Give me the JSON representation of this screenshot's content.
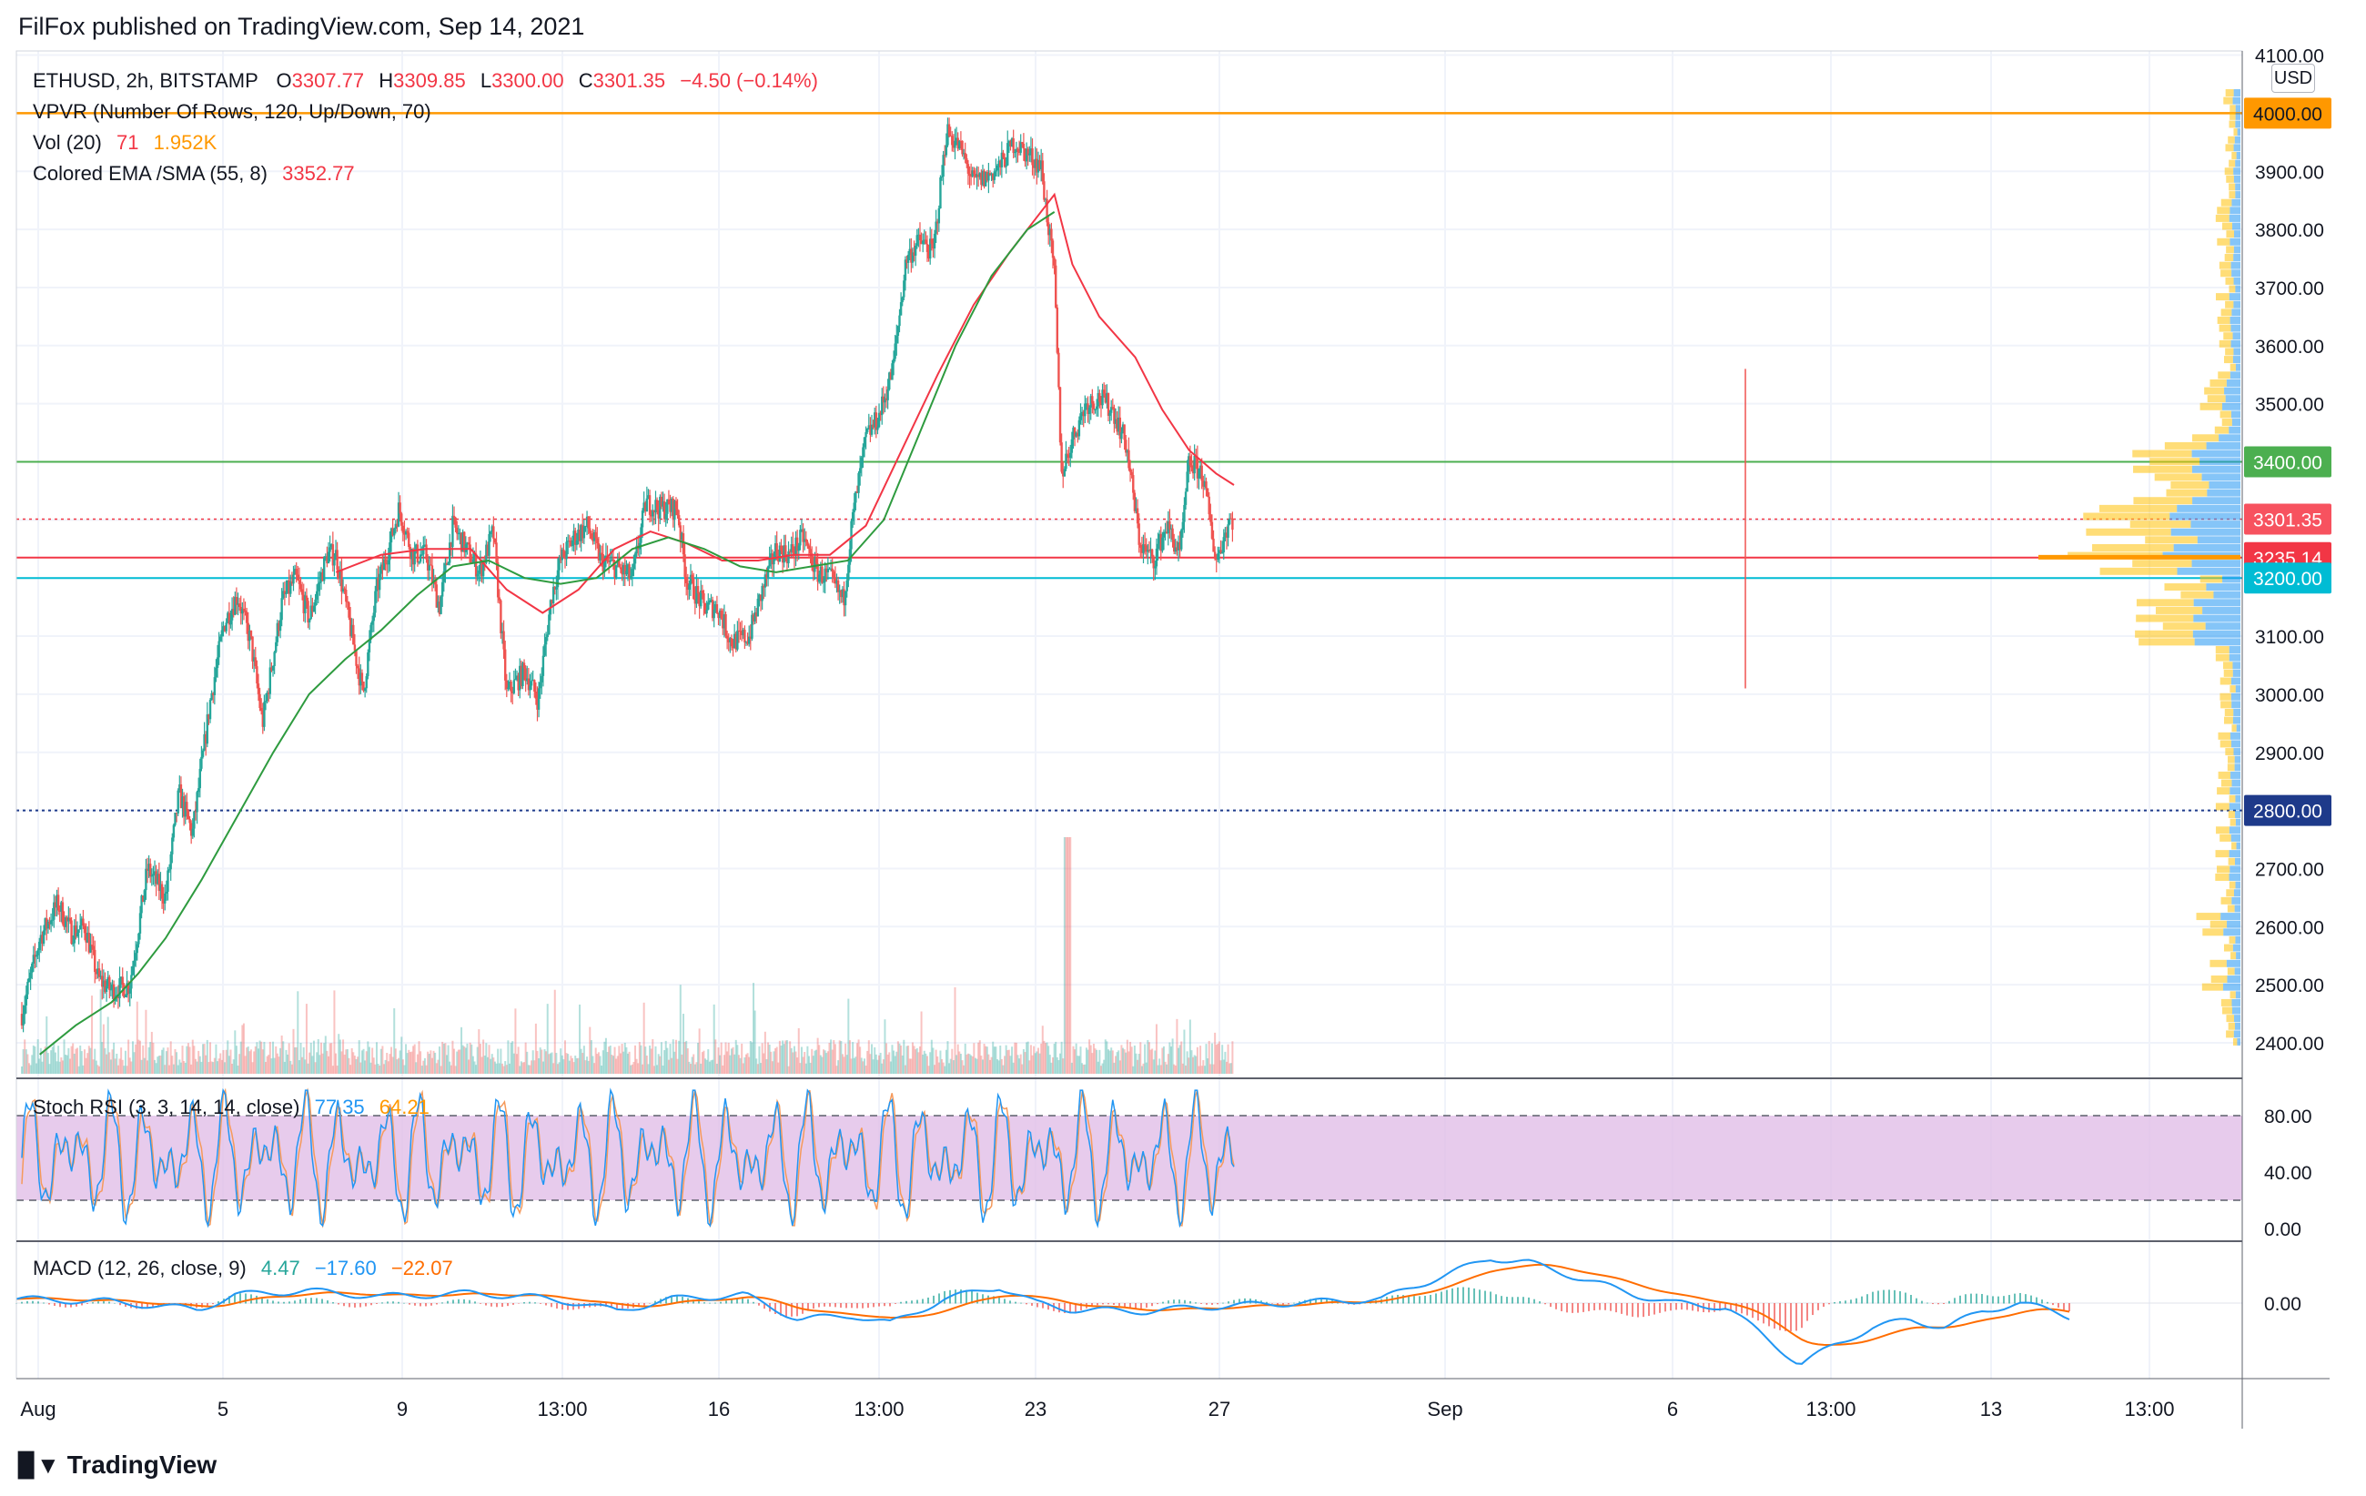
{
  "header": {
    "text": "FilFox published on TradingView.com, Sep 14, 2021"
  },
  "footer": {
    "brand": "TradingView",
    "logo_icon": "tradingview-logo-icon"
  },
  "currency": "USD",
  "colors": {
    "up": "#26a69a",
    "down": "#ef5350",
    "ema": "#f23645",
    "sma": "#089981",
    "resistance": "#ff9800",
    "support_green": "#4caf50",
    "support_red": "#f23645",
    "support_cyan": "#00bcd4",
    "dotted_blue": "#1e3a8a",
    "stoch_k": "#2196f3",
    "stoch_d": "#f59a5c",
    "stoch_band": "#e1bee7",
    "macd": "#2196f3",
    "signal": "#ff6d00"
  },
  "legend": {
    "symbol": "ETHUSD, 2h, BITSTAMP",
    "o_label": "O",
    "o_value": "3307.77",
    "h_label": "H",
    "h_value": "3309.85",
    "l_label": "L",
    "l_value": "3300.00",
    "c_label": "C",
    "c_value": "3301.35",
    "change": "−4.50 (−0.14%)",
    "vpvr": "VPVR (Number Of Rows, 120, Up/Down, 70)",
    "vol_label": "Vol (20)",
    "vol_value1": "71",
    "vol_value2": "1.952K",
    "ema_label": "Colored EMA /SMA (55, 8)",
    "ema_value": "3352.77"
  },
  "stoch": {
    "label": "Stoch RSI (3, 3, 14, 14, close)",
    "k": "77.35",
    "d": "64.21"
  },
  "macd": {
    "label": "MACD (12, 26, close, 9)",
    "hist": "4.47",
    "macd": "−17.60",
    "signal": "−22.07"
  },
  "chart_data": {
    "type": "candlestick",
    "symbol": "ETHUSD",
    "interval": "2h",
    "exchange": "BITSTAMP",
    "price_axis": {
      "ticks": [
        "2400.00",
        "2500.00",
        "2600.00",
        "2700.00",
        "2800.00",
        "2900.00",
        "3000.00",
        "3100.00",
        "3200.00",
        "3300.00",
        "3400.00",
        "3500.00",
        "3600.00",
        "3700.00",
        "3800.00",
        "3900.00",
        "4000.00",
        "4100.00"
      ],
      "range": [
        2340,
        4110
      ]
    },
    "time_axis": {
      "ticks": [
        "Aug",
        "5",
        "9",
        "13:00",
        "16",
        "13:00",
        "23",
        "27",
        "Sep",
        "6",
        "13:00",
        "13",
        "13:00"
      ]
    },
    "price_labels": [
      {
        "value": 4000.0,
        "label": "4000.00",
        "style": "resistance"
      },
      {
        "value": 3400.0,
        "label": "3400.00",
        "style": "support_green"
      },
      {
        "value": 3301.35,
        "label": "3301.35",
        "style": "last"
      },
      {
        "value": 3235.14,
        "label": "3235.14",
        "style": "support_red"
      },
      {
        "value": 3200.0,
        "label": "3200.00",
        "style": "support_cyan"
      },
      {
        "value": 2800.0,
        "label": "2800.00",
        "style": "dotted_blue"
      }
    ],
    "close_path": [
      [
        0,
        2450
      ],
      [
        20,
        2580
      ],
      [
        40,
        2640
      ],
      [
        55,
        2590
      ],
      [
        70,
        2600
      ],
      [
        85,
        2510
      ],
      [
        100,
        2490
      ],
      [
        120,
        2500
      ],
      [
        140,
        2700
      ],
      [
        160,
        2650
      ],
      [
        175,
        2830
      ],
      [
        190,
        2760
      ],
      [
        210,
        2990
      ],
      [
        225,
        3120
      ],
      [
        240,
        3170
      ],
      [
        255,
        3090
      ],
      [
        268,
        2950
      ],
      [
        290,
        3160
      ],
      [
        305,
        3200
      ],
      [
        320,
        3130
      ],
      [
        340,
        3240
      ],
      [
        350,
        3240
      ],
      [
        365,
        3120
      ],
      [
        380,
        3000
      ],
      [
        395,
        3180
      ],
      [
        410,
        3260
      ],
      [
        420,
        3320
      ],
      [
        435,
        3240
      ],
      [
        450,
        3240
      ],
      [
        465,
        3150
      ],
      [
        480,
        3290
      ],
      [
        495,
        3250
      ],
      [
        510,
        3210
      ],
      [
        525,
        3280
      ],
      [
        540,
        3000
      ],
      [
        560,
        3040
      ],
      [
        575,
        2990
      ],
      [
        590,
        3170
      ],
      [
        600,
        3230
      ],
      [
        615,
        3270
      ],
      [
        630,
        3290
      ],
      [
        645,
        3230
      ],
      [
        660,
        3220
      ],
      [
        680,
        3200
      ],
      [
        695,
        3330
      ],
      [
        710,
        3320
      ],
      [
        730,
        3320
      ],
      [
        740,
        3200
      ],
      [
        760,
        3150
      ],
      [
        775,
        3150
      ],
      [
        790,
        3090
      ],
      [
        810,
        3100
      ],
      [
        825,
        3180
      ],
      [
        840,
        3250
      ],
      [
        855,
        3240
      ],
      [
        870,
        3270
      ],
      [
        885,
        3210
      ],
      [
        900,
        3200
      ],
      [
        915,
        3160
      ],
      [
        925,
        3300
      ],
      [
        940,
        3440
      ],
      [
        955,
        3480
      ],
      [
        970,
        3560
      ],
      [
        985,
        3750
      ],
      [
        1000,
        3780
      ],
      [
        1015,
        3760
      ],
      [
        1030,
        3970
      ],
      [
        1045,
        3940
      ],
      [
        1060,
        3880
      ],
      [
        1075,
        3890
      ],
      [
        1090,
        3910
      ],
      [
        1105,
        3950
      ],
      [
        1120,
        3930
      ],
      [
        1135,
        3910
      ],
      [
        1150,
        3720
      ],
      [
        1158,
        3380
      ],
      [
        1170,
        3440
      ],
      [
        1185,
        3500
      ],
      [
        1200,
        3510
      ],
      [
        1215,
        3490
      ],
      [
        1230,
        3430
      ],
      [
        1245,
        3260
      ],
      [
        1260,
        3230
      ],
      [
        1275,
        3290
      ],
      [
        1290,
        3240
      ],
      [
        1300,
        3400
      ],
      [
        1315,
        3380
      ],
      [
        1330,
        3230
      ],
      [
        1345,
        3300
      ],
      [
        1350,
        3301
      ]
    ],
    "ema_path": [
      [
        350,
        3210
      ],
      [
        400,
        3240
      ],
      [
        450,
        3250
      ],
      [
        500,
        3250
      ],
      [
        540,
        3180
      ],
      [
        580,
        3140
      ],
      [
        620,
        3180
      ],
      [
        660,
        3250
      ],
      [
        700,
        3280
      ],
      [
        740,
        3260
      ],
      [
        780,
        3230
      ],
      [
        820,
        3230
      ],
      [
        860,
        3240
      ],
      [
        900,
        3240
      ],
      [
        940,
        3290
      ],
      [
        980,
        3420
      ],
      [
        1020,
        3550
      ],
      [
        1060,
        3670
      ],
      [
        1100,
        3760
      ],
      [
        1130,
        3820
      ],
      [
        1150,
        3860
      ],
      [
        1170,
        3740
      ],
      [
        1200,
        3650
      ],
      [
        1240,
        3580
      ],
      [
        1270,
        3490
      ],
      [
        1300,
        3420
      ],
      [
        1330,
        3380
      ],
      [
        1350,
        3360
      ]
    ],
    "sma_path": [
      [
        20,
        2380
      ],
      [
        60,
        2430
      ],
      [
        100,
        2470
      ],
      [
        130,
        2520
      ],
      [
        160,
        2580
      ],
      [
        200,
        2680
      ],
      [
        240,
        2790
      ],
      [
        280,
        2900
      ],
      [
        320,
        3000
      ],
      [
        360,
        3060
      ],
      [
        400,
        3110
      ],
      [
        440,
        3170
      ],
      [
        480,
        3220
      ],
      [
        520,
        3230
      ],
      [
        560,
        3200
      ],
      [
        600,
        3190
      ],
      [
        640,
        3200
      ],
      [
        680,
        3250
      ],
      [
        720,
        3270
      ],
      [
        760,
        3250
      ],
      [
        800,
        3220
      ],
      [
        840,
        3210
      ],
      [
        880,
        3220
      ],
      [
        920,
        3230
      ],
      [
        960,
        3300
      ],
      [
        1000,
        3450
      ],
      [
        1040,
        3600
      ],
      [
        1080,
        3720
      ],
      [
        1120,
        3800
      ],
      [
        1150,
        3830
      ]
    ],
    "stoch_rsi": {
      "ticks": [
        "0.00",
        "40.00",
        "80.00"
      ],
      "upper_band": 80,
      "lower_band": 20,
      "last_k": 77.35,
      "last_d": 64.21
    },
    "macd_panel": {
      "ticks": [
        "0.00"
      ],
      "last_hist": 4.47,
      "last_macd": -17.6,
      "last_signal": -22.07
    }
  }
}
